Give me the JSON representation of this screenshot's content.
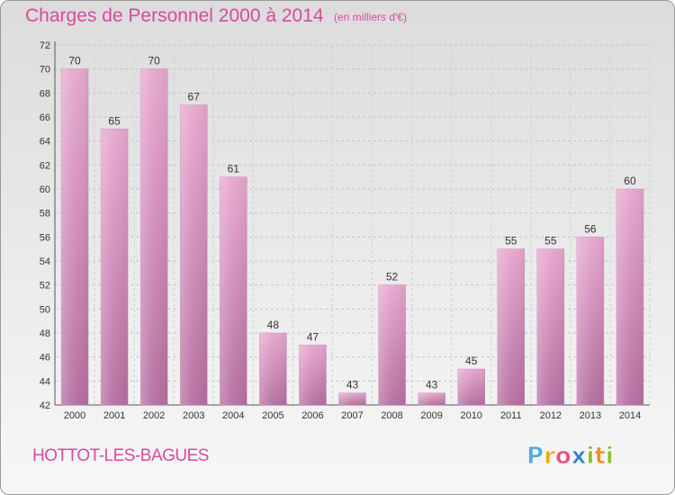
{
  "header": {
    "title": "Charges de Personnel 2000 à 2014",
    "subtitle": "(en milliers d'€)"
  },
  "footer": {
    "commune": "HOTTOT-LES-BAGUES",
    "logo_text": "Proxiti"
  },
  "colors": {
    "accent": "#d84a9e",
    "bar_top": "#e7a8cf",
    "bar_bottom": "#b66fa0",
    "logo_p": "#5aa9d9",
    "logo_r": "#f2a800",
    "logo_o": "#e84f7f",
    "logo_x": "#2f86d0",
    "logo_i": "#8cbc2c",
    "logo_t": "#f08a24"
  },
  "chart_data": {
    "type": "bar",
    "categories": [
      "2000",
      "2001",
      "2002",
      "2003",
      "2004",
      "2005",
      "2006",
      "2007",
      "2008",
      "2009",
      "2010",
      "2011",
      "2012",
      "2013",
      "2014"
    ],
    "values": [
      70,
      65,
      70,
      67,
      61,
      48,
      47,
      43,
      52,
      43,
      45,
      55,
      55,
      56,
      60
    ],
    "ylim": [
      42,
      72
    ],
    "yticks": [
      42,
      44,
      46,
      48,
      50,
      52,
      54,
      56,
      58,
      60,
      62,
      64,
      66,
      68,
      70,
      72
    ],
    "xlabel": "",
    "ylabel": "",
    "grid": "horizontal dashed",
    "data_labels": true
  }
}
